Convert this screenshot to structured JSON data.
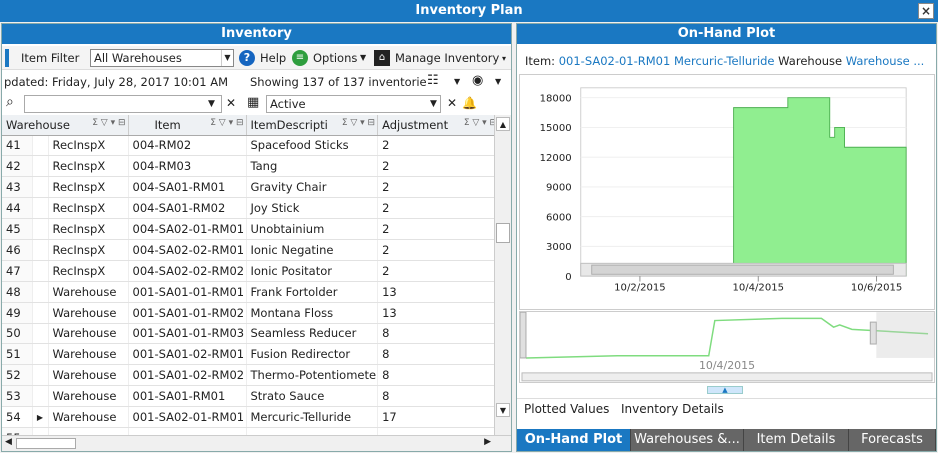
{
  "window": {
    "title": "Inventory Plan",
    "close_glyph": "×"
  },
  "inventory": {
    "header": "Inventory",
    "toolbar": {
      "item_filter_label": "Item Filter",
      "warehouse_select": "All Warehouses",
      "help_label": "Help",
      "options_label": "Options",
      "manage_label": "Manage Inventory"
    },
    "status": {
      "updated": "pdated:  Friday, July 28, 2017  10:01 AM",
      "showing": "Showing 137 of 137 inventorie"
    },
    "filter": {
      "active_label": "Active"
    },
    "columns": [
      "Warehouse",
      "Item",
      "ItemDescripti",
      "Adjustment"
    ],
    "rows": [
      {
        "num": "41",
        "warehouse": "RecInspX",
        "item": "004-RM02",
        "desc": "Spacefood Sticks",
        "adj": "2"
      },
      {
        "num": "42",
        "warehouse": "RecInspX",
        "item": "004-RM03",
        "desc": "Tang",
        "adj": "2"
      },
      {
        "num": "43",
        "warehouse": "RecInspX",
        "item": "004-SA01-RM01",
        "desc": "Gravity Chair",
        "adj": "2"
      },
      {
        "num": "44",
        "warehouse": "RecInspX",
        "item": "004-SA01-RM02",
        "desc": "Joy Stick",
        "adj": "2"
      },
      {
        "num": "45",
        "warehouse": "RecInspX",
        "item": "004-SA02-01-RM01",
        "desc": "Unobtainium",
        "adj": "2"
      },
      {
        "num": "46",
        "warehouse": "RecInspX",
        "item": "004-SA02-02-RM01",
        "desc": "Ionic Negatine",
        "adj": "2"
      },
      {
        "num": "47",
        "warehouse": "RecInspX",
        "item": "004-SA02-02-RM02",
        "desc": "Ionic Positator",
        "adj": "2"
      },
      {
        "num": "48",
        "warehouse": "Warehouse",
        "item": "001-SA01-01-RM01",
        "desc": "Frank Fortolder",
        "adj": "13"
      },
      {
        "num": "49",
        "warehouse": "Warehouse",
        "item": "001-SA01-01-RM02",
        "desc": "Montana Floss",
        "adj": "13"
      },
      {
        "num": "50",
        "warehouse": "Warehouse",
        "item": "001-SA01-01-RM03",
        "desc": "Seamless Reducer",
        "adj": "8"
      },
      {
        "num": "51",
        "warehouse": "Warehouse",
        "item": "001-SA01-02-RM01",
        "desc": "Fusion Redirector",
        "adj": "8"
      },
      {
        "num": "52",
        "warehouse": "Warehouse",
        "item": "001-SA01-02-RM02",
        "desc": "Thermo-Potentiomete",
        "adj": "8"
      },
      {
        "num": "53",
        "warehouse": "Warehouse",
        "item": "001-SA01-RM01",
        "desc": "Strato Sauce",
        "adj": "8"
      },
      {
        "num": "54",
        "warehouse": "Warehouse",
        "item": "001-SA02-01-RM01",
        "desc": "Mercuric-Telluride",
        "adj": "17",
        "current": true
      },
      {
        "num": "55",
        "warehouse": "",
        "item": "",
        "desc": "",
        "adj": ""
      }
    ]
  },
  "plot": {
    "header": "On-Hand Plot",
    "item_label": "Item:",
    "item_value": "001-SA02-01-RM01 Mercuric-Telluride",
    "warehouse_label": "Warehouse",
    "warehouse_value": "Warehouse ...",
    "nav_date": "10/4/2015",
    "subtabs": [
      "Plotted Values",
      "Inventory Details"
    ],
    "tabs": [
      "On-Hand Plot",
      "Warehouses &...",
      "Item Details",
      "Forecasts"
    ],
    "colors": {
      "fill": "#90ee90",
      "stroke": "#4caf50",
      "accent": "#1a78c2"
    }
  },
  "chart_data": {
    "type": "area",
    "x_ticks": [
      "10/2/2015",
      "10/4/2015",
      "10/6/2015"
    ],
    "y_ticks": [
      0,
      3000,
      6000,
      9000,
      12000,
      15000,
      18000
    ],
    "ylim": [
      0,
      19000
    ],
    "xlim": [
      "10/1/2015 00:00",
      "10/6/2015 12:00"
    ],
    "x": [
      "10/1/2015 00:00",
      "10/2/2015 06:00",
      "10/3/2015 12:00",
      "10/3/2015 14:00",
      "10/4/2015 12:00",
      "10/5/2015 01:00",
      "10/5/2015 05:00",
      "10/5/2015 07:00",
      "10/5/2015 11:00",
      "10/6/2015 12:00"
    ],
    "series": [
      {
        "values": [
          0,
          1000,
          1000,
          17000,
          18000,
          18000,
          14000,
          15000,
          13000,
          11000
        ]
      }
    ]
  }
}
